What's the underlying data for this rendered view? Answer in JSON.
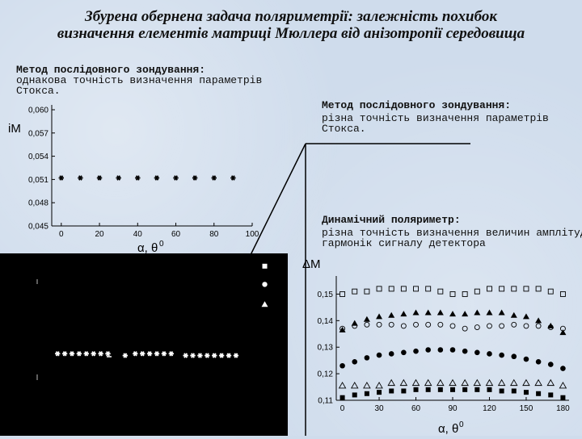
{
  "title": {
    "line1": "Збурена обернена задача поляриметрії: залежність похибок",
    "line2": "визначення елементів матриці Мюллера від анізотропії середовища"
  },
  "method1": {
    "heading": "Метод послідовного зондування:",
    "line1": "однакова точність визначення параметрів",
    "line2": "Стокса."
  },
  "method2": {
    "heading": "Метод послідовного зондування:",
    "line1": "різна точність визначення параметрів",
    "line2": "Стокса."
  },
  "method3": {
    "heading": "Динамічний поляриметр:",
    "line1": "різна точність визначення величин амплітуд",
    "line2": "гармонік сигналу детектора"
  },
  "colors": {
    "background": "#cfdcec",
    "marker": "#000000",
    "panel": "#000000"
  },
  "chart_data": [
    {
      "type": "scatter",
      "ylabel": "iM",
      "xlabel": "α, θ",
      "xlabel_sup": "0",
      "xlim": [
        -5,
        100
      ],
      "ylim": [
        0.045,
        0.06
      ],
      "xticks": [
        0,
        20,
        40,
        60,
        80,
        100
      ],
      "yticks": [
        0.045,
        0.048,
        0.051,
        0.054,
        0.057,
        0.06
      ],
      "xtick_labels": [
        "0",
        "20",
        "40",
        "60",
        "80",
        "100"
      ],
      "ytick_labels": [
        "0,045",
        "0,048",
        "0,051",
        "0,054",
        "0,057",
        "0,060"
      ],
      "series": [
        {
          "marker": "star",
          "x": [
            0,
            10,
            20,
            30,
            40,
            50,
            60,
            70,
            80,
            90
          ],
          "y": [
            0.0512,
            0.0512,
            0.0512,
            0.0512,
            0.0512,
            0.0512,
            0.0512,
            0.0512,
            0.0512,
            0.0512
          ]
        }
      ]
    },
    {
      "type": "scatter",
      "ylabel": "ΔM",
      "xlabel": "α, θ",
      "xlabel_sup": "0",
      "xlim": [
        -5,
        185
      ],
      "ylim": [
        0.11,
        0.155
      ],
      "xticks": [
        0,
        30,
        60,
        90,
        120,
        150,
        180
      ],
      "yticks": [
        0.11,
        0.12,
        0.13,
        0.14,
        0.15
      ],
      "xtick_labels": [
        "0",
        "30",
        "60",
        "90",
        "120",
        "150",
        "180"
      ],
      "ytick_labels": [
        "0,11",
        "0,12",
        "0,13",
        "0,14",
        "0,15"
      ],
      "x": [
        0,
        10,
        20,
        30,
        40,
        50,
        60,
        70,
        80,
        90,
        100,
        110,
        120,
        130,
        140,
        150,
        160,
        170,
        180
      ],
      "series": [
        {
          "marker": "open-square",
          "y": [
            0.15,
            0.151,
            0.151,
            0.152,
            0.152,
            0.152,
            0.152,
            0.152,
            0.151,
            0.15,
            0.15,
            0.151,
            0.152,
            0.152,
            0.152,
            0.152,
            0.152,
            0.151,
            0.15
          ]
        },
        {
          "marker": "filled-triangle",
          "y": [
            0.1365,
            0.139,
            0.1405,
            0.1415,
            0.142,
            0.1425,
            0.143,
            0.143,
            0.143,
            0.1425,
            0.1425,
            0.143,
            0.143,
            0.143,
            0.142,
            0.1415,
            0.14,
            0.138,
            0.1355
          ]
        },
        {
          "marker": "open-circle",
          "y": [
            0.137,
            0.138,
            0.1385,
            0.1385,
            0.1385,
            0.138,
            0.1385,
            0.1385,
            0.1385,
            0.138,
            0.137,
            0.1375,
            0.138,
            0.138,
            0.1385,
            0.138,
            0.138,
            0.1375,
            0.137
          ]
        },
        {
          "marker": "filled-circle",
          "y": [
            0.123,
            0.1245,
            0.126,
            0.127,
            0.1275,
            0.128,
            0.1285,
            0.129,
            0.129,
            0.129,
            0.1285,
            0.128,
            0.1275,
            0.127,
            0.1265,
            0.1255,
            0.1245,
            0.1235,
            0.122
          ]
        },
        {
          "marker": "open-triangle",
          "y": [
            0.1155,
            0.1155,
            0.1155,
            0.1155,
            0.1165,
            0.1165,
            0.1165,
            0.1165,
            0.1165,
            0.1165,
            0.1165,
            0.1165,
            0.1165,
            0.1165,
            0.1165,
            0.1165,
            0.1165,
            0.1165,
            0.1155
          ]
        },
        {
          "marker": "filled-square",
          "y": [
            0.111,
            0.112,
            0.1125,
            0.113,
            0.1135,
            0.1135,
            0.114,
            0.114,
            0.114,
            0.114,
            0.114,
            0.114,
            0.114,
            0.1135,
            0.1135,
            0.113,
            0.1125,
            0.112,
            0.111
          ]
        }
      ]
    },
    {
      "type": "scatter",
      "xlim": [
        0,
        100
      ],
      "ylim": [
        0,
        1
      ],
      "series": [
        {
          "marker": "star-white",
          "x": [
            20,
            22.5,
            25,
            27.5,
            30,
            32.5,
            35,
            37.5,
            43.5,
            47,
            49.5,
            52,
            54.5,
            57,
            59.5,
            64.5,
            67,
            69.5,
            72,
            74.5,
            77,
            79.5,
            82
          ],
          "y": [
            0.45,
            0.45,
            0.45,
            0.45,
            0.45,
            0.45,
            0.45,
            0.45,
            0.44,
            0.45,
            0.45,
            0.45,
            0.45,
            0.45,
            0.45,
            0.44,
            0.44,
            0.44,
            0.44,
            0.44,
            0.44,
            0.44,
            0.44
          ]
        },
        {
          "marker": "legend",
          "x": [
            92,
            92,
            92
          ],
          "y": [
            0.93,
            0.83,
            0.72
          ]
        }
      ]
    }
  ]
}
